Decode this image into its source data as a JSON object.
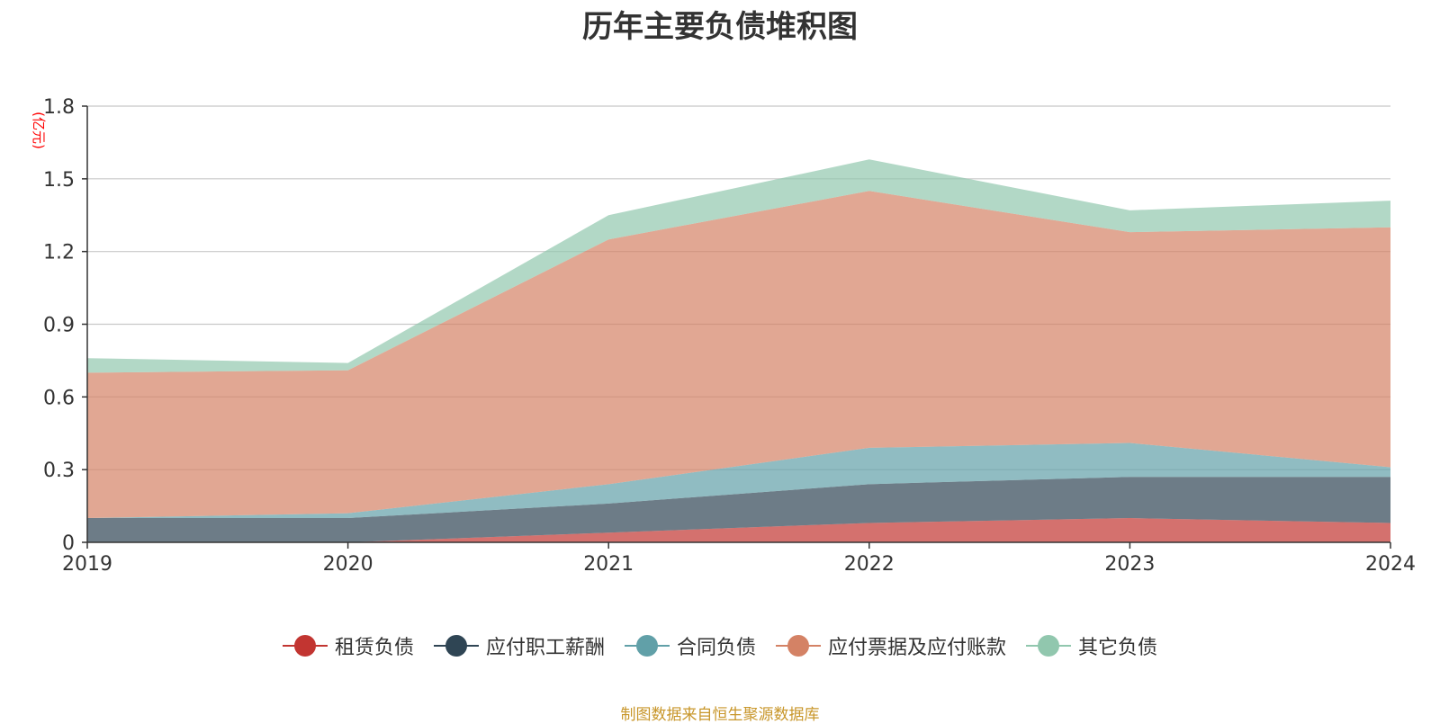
{
  "chart_data": {
    "type": "area",
    "stacked": true,
    "title": "历年主要负债堆积图",
    "unit_label": "(亿元)",
    "categories": [
      "2019",
      "2020",
      "2021",
      "2022",
      "2023",
      "2024"
    ],
    "ylim": [
      0,
      1.8
    ],
    "yticks": [
      "0",
      "0.3",
      "0.6",
      "0.9",
      "1.2",
      "1.5",
      "1.8"
    ],
    "grid": true,
    "legend_position": "bottom",
    "series": [
      {
        "name": "租赁负债",
        "color": "#c23531",
        "values": [
          0.0,
          0.0,
          0.04,
          0.08,
          0.1,
          0.08
        ]
      },
      {
        "name": "应付职工薪酬",
        "color": "#2f4554",
        "values": [
          0.1,
          0.1,
          0.12,
          0.16,
          0.17,
          0.19
        ]
      },
      {
        "name": "合同负债",
        "color": "#61a0a8",
        "values": [
          0.0,
          0.02,
          0.08,
          0.15,
          0.14,
          0.04
        ]
      },
      {
        "name": "应付票据及应付账款",
        "color": "#d48265",
        "values": [
          0.6,
          0.59,
          1.01,
          1.06,
          0.87,
          0.99
        ]
      },
      {
        "name": "其它负债",
        "color": "#91c7ae",
        "values": [
          0.06,
          0.03,
          0.1,
          0.13,
          0.09,
          0.11
        ]
      }
    ]
  },
  "footer": {
    "source": "制图数据来自恒生聚源数据库"
  }
}
